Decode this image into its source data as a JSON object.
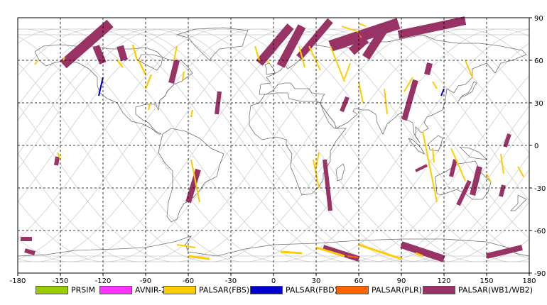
{
  "map": {
    "lon_ticks": [
      "-180",
      "-150",
      "-120",
      "-90",
      "-60",
      "-30",
      "0",
      "30",
      "60",
      "90",
      "120",
      "150",
      "180"
    ],
    "lat_ticks": [
      "90",
      "60",
      "30",
      "0",
      "-30",
      "-60",
      "-90"
    ],
    "colors": {
      "background": "#ffffff",
      "frame": "#000000",
      "grid": "#000000",
      "orbit_track": "#c8c8c8",
      "coastline": "#707070"
    }
  },
  "legend": {
    "items": [
      {
        "label": "PRSIM",
        "color": "#99cc00"
      },
      {
        "label": "AVNIR-2",
        "color": "#ff33ff"
      },
      {
        "label": "PALSAR(FBS)",
        "color": "#ffcc00"
      },
      {
        "label": "PALSAR(FBD)",
        "color": "#0000cc"
      },
      {
        "label": "PALSAR(PLR)",
        "color": "#ff6600"
      },
      {
        "label": "PALSAR(WB1/WB2)",
        "color": "#993366"
      }
    ]
  }
}
